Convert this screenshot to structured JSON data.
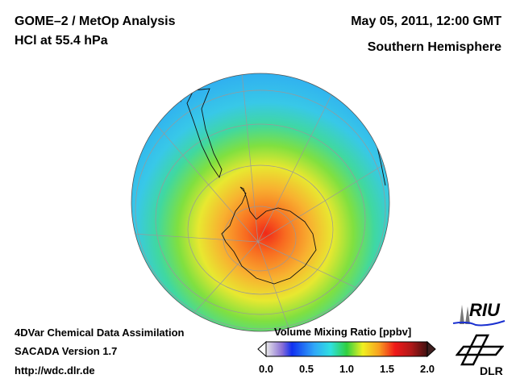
{
  "header": {
    "title_line1": "GOME–2 / MetOp Analysis",
    "title_line2": "HCl at 55.4 hPa",
    "date": "May 05, 2011, 12:00 GMT",
    "region": "Southern Hemisphere"
  },
  "footer": {
    "line1": "4DVar Chemical Data Assimilation",
    "line2": "SACADA Version 1.7",
    "line3": "http://wdc.dlr.de"
  },
  "colorbar": {
    "title": "Volume Mixing Ratio [ppbv]",
    "ticks": [
      "0.0",
      "0.5",
      "1.0",
      "1.5",
      "2.0"
    ],
    "range": [
      0.0,
      2.0
    ],
    "colors": [
      "#e8e8e8",
      "#8a6fd6",
      "#1030f0",
      "#30a8f8",
      "#30e0e0",
      "#30d040",
      "#f0f020",
      "#f8a020",
      "#f01818",
      "#b01818",
      "#401010"
    ]
  },
  "logos": {
    "riu": "RIU",
    "dlr": "DLR"
  }
}
